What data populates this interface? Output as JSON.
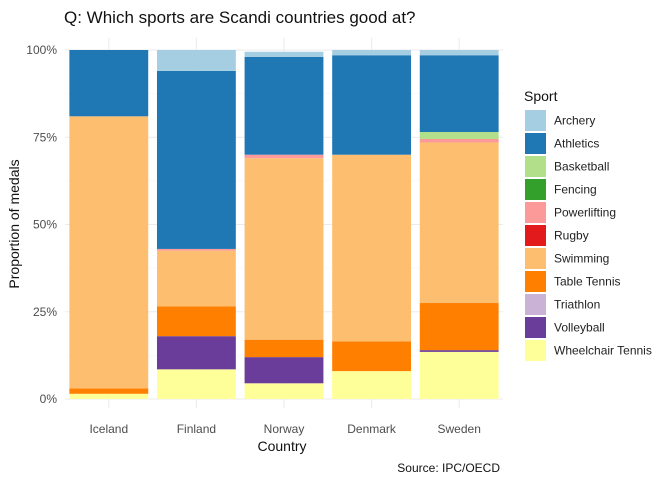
{
  "chart_data": {
    "type": "bar",
    "stacked": true,
    "title": "Q: Which sports are Scandi countries good at?",
    "xlabel": "Country",
    "ylabel": "Proportion of medals",
    "caption": "Source: IPC/OECD",
    "ylim": [
      0,
      1
    ],
    "y_ticks": [
      "0%",
      "25%",
      "50%",
      "75%",
      "100%"
    ],
    "y_tick_values": [
      0,
      0.25,
      0.5,
      0.75,
      1
    ],
    "grid": true,
    "legend_title": "Sport",
    "legend_position": "right",
    "categories": [
      "Iceland",
      "Finland",
      "Norway",
      "Denmark",
      "Sweden"
    ],
    "series": [
      {
        "name": "Archery",
        "color": "#a6cee3",
        "values": [
          0.0,
          0.06,
          0.015,
          0.015,
          0.015
        ]
      },
      {
        "name": "Athletics",
        "color": "#1f78b4",
        "values": [
          0.19,
          0.51,
          0.28,
          0.285,
          0.22
        ]
      },
      {
        "name": "Basketball",
        "color": "#b2df8a",
        "values": [
          0.0,
          0.0,
          0.0,
          0.0,
          0.02
        ]
      },
      {
        "name": "Fencing",
        "color": "#33a02c",
        "values": [
          0.0,
          0.0,
          0.0,
          0.0,
          0.0
        ]
      },
      {
        "name": "Powerlifting",
        "color": "#fb9a99",
        "values": [
          0.0,
          0.005,
          0.01,
          0.0,
          0.01
        ]
      },
      {
        "name": "Rugby",
        "color": "#e31a1c",
        "values": [
          0.0,
          0.0,
          0.0,
          0.0,
          0.0
        ]
      },
      {
        "name": "Swimming",
        "color": "#fdbf6f",
        "values": [
          0.78,
          0.16,
          0.52,
          0.535,
          0.46
        ]
      },
      {
        "name": "Table Tennis",
        "color": "#ff7f00",
        "values": [
          0.015,
          0.085,
          0.05,
          0.085,
          0.135
        ]
      },
      {
        "name": "Triathlon",
        "color": "#cab2d6",
        "values": [
          0.0,
          0.0,
          0.0,
          0.0,
          0.0
        ]
      },
      {
        "name": "Volleyball",
        "color": "#6a3d9a",
        "values": [
          0.0,
          0.095,
          0.075,
          0.0,
          0.005
        ]
      },
      {
        "name": "Wheelchair Tennis",
        "color": "#ffff99",
        "values": [
          0.015,
          0.085,
          0.045,
          0.08,
          0.135
        ]
      }
    ]
  }
}
